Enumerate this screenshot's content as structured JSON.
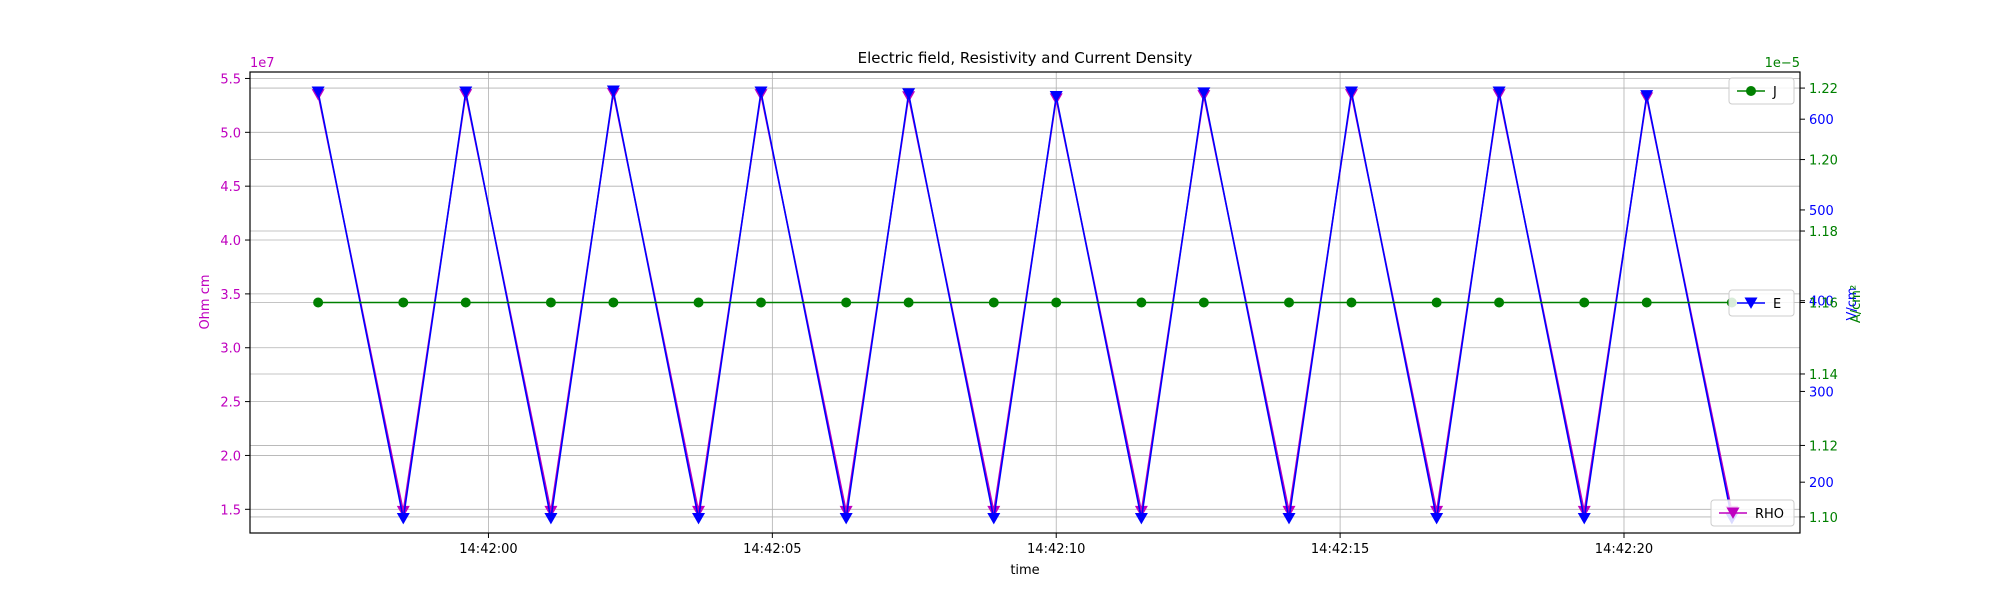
{
  "chart_data": {
    "type": "line",
    "title": "Electric field, Resistivity and Current Density",
    "xlabel": "time",
    "x_ticks": [
      "14:42:00",
      "14:42:05",
      "14:42:10",
      "14:42:15",
      "14:42:20"
    ],
    "x_ticks_seconds": [
      0,
      5,
      10,
      15,
      20
    ],
    "xlim_seconds": [
      -4.2,
      23.1
    ],
    "grid": true,
    "axes": {
      "rho": {
        "label": "Ohm cm",
        "color": "#bf00bf",
        "ylim": [
          12800000,
          55600000
        ],
        "ticks": [
          15000000,
          20000000,
          25000000,
          30000000,
          35000000,
          40000000,
          45000000,
          50000000,
          55000000
        ],
        "tick_labels": [
          "1.5",
          "2.0",
          "2.5",
          "3.0",
          "3.5",
          "4.0",
          "4.5",
          "5.0",
          "5.5"
        ],
        "offset_text": "1e7"
      },
      "e": {
        "label": "V/cm",
        "color": "#0000ff",
        "ylim": [
          144,
          652
        ],
        "ticks": [
          200,
          300,
          400,
          500,
          600
        ],
        "tick_labels": [
          "200",
          "300",
          "400",
          "500",
          "600"
        ]
      },
      "j": {
        "label": "A/cm²",
        "color": "#008000",
        "ylim": [
          1.0955e-05,
          1.2245e-05
        ],
        "ticks": [
          1.1e-05,
          1.12e-05,
          1.14e-05,
          1.16e-05,
          1.18e-05,
          1.2e-05,
          1.22e-05
        ],
        "tick_labels": [
          "1.10",
          "1.12",
          "1.14",
          "1.16",
          "1.18",
          "1.20",
          "1.22"
        ],
        "offset_text": "1e−5"
      }
    },
    "series": [
      {
        "name": "RHO",
        "axis": "rho",
        "color": "#bf00bf",
        "marker": "triangle-down",
        "x": [
          -3.0,
          -1.5,
          -0.4,
          1.1,
          2.2,
          3.7,
          4.8,
          6.3,
          7.4,
          8.9,
          10.0,
          11.5,
          12.6,
          14.1,
          15.2,
          16.7,
          17.8,
          19.3,
          20.4,
          21.9
        ],
        "values": [
          53500000,
          14800000,
          53500000,
          14800000,
          53600000,
          14800000,
          53500000,
          14800000,
          53300000,
          14800000,
          53100000,
          14800000,
          53400000,
          14800000,
          53500000,
          14800000,
          53500000,
          14800000,
          53200000,
          14800000
        ]
      },
      {
        "name": "E",
        "axis": "e",
        "color": "#0000ff",
        "marker": "triangle-down",
        "x": [
          -3.0,
          -1.5,
          -0.4,
          1.1,
          2.2,
          3.7,
          4.8,
          6.3,
          7.4,
          8.9,
          10.0,
          11.5,
          12.6,
          14.1,
          15.2,
          16.7,
          17.8,
          19.3,
          20.4,
          21.9
        ],
        "values": [
          630,
          160,
          630,
          160,
          631,
          160,
          630,
          160,
          628,
          160,
          625,
          160,
          629,
          160,
          630,
          160,
          630,
          160,
          626,
          160
        ]
      },
      {
        "name": "J",
        "axis": "j",
        "color": "#008000",
        "marker": "circle",
        "x": [
          -3.0,
          -1.5,
          -0.4,
          1.1,
          2.2,
          3.7,
          4.8,
          6.3,
          7.4,
          8.9,
          10.0,
          11.5,
          12.6,
          14.1,
          15.2,
          16.7,
          17.8,
          19.3,
          20.4,
          21.9
        ],
        "values": [
          1.16e-05,
          1.16e-05,
          1.16e-05,
          1.16e-05,
          1.16e-05,
          1.16e-05,
          1.16e-05,
          1.16e-05,
          1.16e-05,
          1.16e-05,
          1.16e-05,
          1.16e-05,
          1.16e-05,
          1.16e-05,
          1.16e-05,
          1.16e-05,
          1.16e-05,
          1.16e-05,
          1.16e-05,
          1.16e-05
        ]
      }
    ],
    "legends": [
      {
        "series": "J",
        "placement": "top-right"
      },
      {
        "series": "E",
        "placement": "center-right"
      },
      {
        "series": "RHO",
        "placement": "bottom-right"
      }
    ]
  }
}
